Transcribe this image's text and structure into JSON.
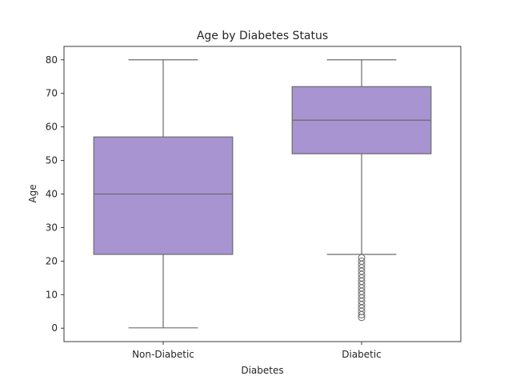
{
  "chart_data": {
    "type": "box",
    "title": "Age by Diabetes Status",
    "xlabel": "Diabetes",
    "ylabel": "Age",
    "ylim": [
      -4,
      84
    ],
    "yticks": [
      0,
      10,
      20,
      30,
      40,
      50,
      60,
      70,
      80
    ],
    "grid": false,
    "box_color": "#a794d0",
    "line_color": "#6b6b6b",
    "categories": [
      "Non-Diabetic",
      "Diabetic"
    ],
    "boxes": [
      {
        "category": "Non-Diabetic",
        "whisker_low": 0.1,
        "q1": 22,
        "median": 40,
        "q3": 57,
        "whisker_high": 80,
        "outliers": []
      },
      {
        "category": "Diabetic",
        "whisker_low": 22,
        "q1": 52,
        "median": 62,
        "q3": 72,
        "whisker_high": 80,
        "outliers": [
          21,
          20,
          19,
          18,
          17,
          16,
          15,
          14,
          13,
          12,
          11,
          10,
          9,
          8,
          7,
          6,
          5,
          4,
          3.2
        ]
      }
    ]
  }
}
